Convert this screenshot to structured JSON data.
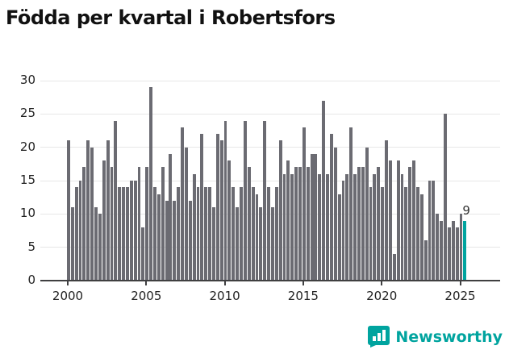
{
  "title": "Födda per kvartal i Robertsfors",
  "chart_data": {
    "type": "bar",
    "title": "Födda per kvartal i Robertsfors",
    "x_start": "2000 Q1",
    "x_end": "2025 Q2",
    "categories_note": "quarterly from 2000Q1 to 2025Q2",
    "values": [
      21,
      11,
      14,
      15,
      17,
      21,
      20,
      11,
      10,
      18,
      21,
      17,
      24,
      14,
      14,
      14,
      15,
      15,
      17,
      8,
      17,
      29,
      14,
      13,
      17,
      12,
      19,
      12,
      14,
      23,
      20,
      12,
      16,
      14,
      22,
      14,
      14,
      11,
      22,
      21,
      24,
      18,
      14,
      11,
      14,
      24,
      17,
      14,
      13,
      11,
      24,
      14,
      11,
      14,
      21,
      16,
      18,
      16,
      17,
      17,
      23,
      17,
      19,
      19,
      16,
      27,
      16,
      22,
      20,
      13,
      15,
      16,
      23,
      16,
      17,
      17,
      20,
      14,
      16,
      17,
      14,
      21,
      18,
      4,
      18,
      16,
      14,
      17,
      18,
      14,
      13,
      6,
      15,
      15,
      10,
      9,
      25,
      8,
      9,
      8,
      10,
      9
    ],
    "highlight_last_value": 9,
    "highlight_label": "9",
    "ylim": [
      0,
      30
    ],
    "y_ticks": [
      "0",
      "5",
      "10",
      "15",
      "20",
      "25",
      "30"
    ],
    "x_ticks": [
      "2000",
      "2005",
      "2010",
      "2015",
      "2020",
      "2025"
    ],
    "bar_color": "#6b6b72",
    "highlight_color": "#00a49f",
    "grid": "horizontal",
    "legend": "none"
  },
  "logo": {
    "text": "Newsworthy",
    "color": "#00a49f",
    "icon": "bar-chart-speech-bubble"
  }
}
